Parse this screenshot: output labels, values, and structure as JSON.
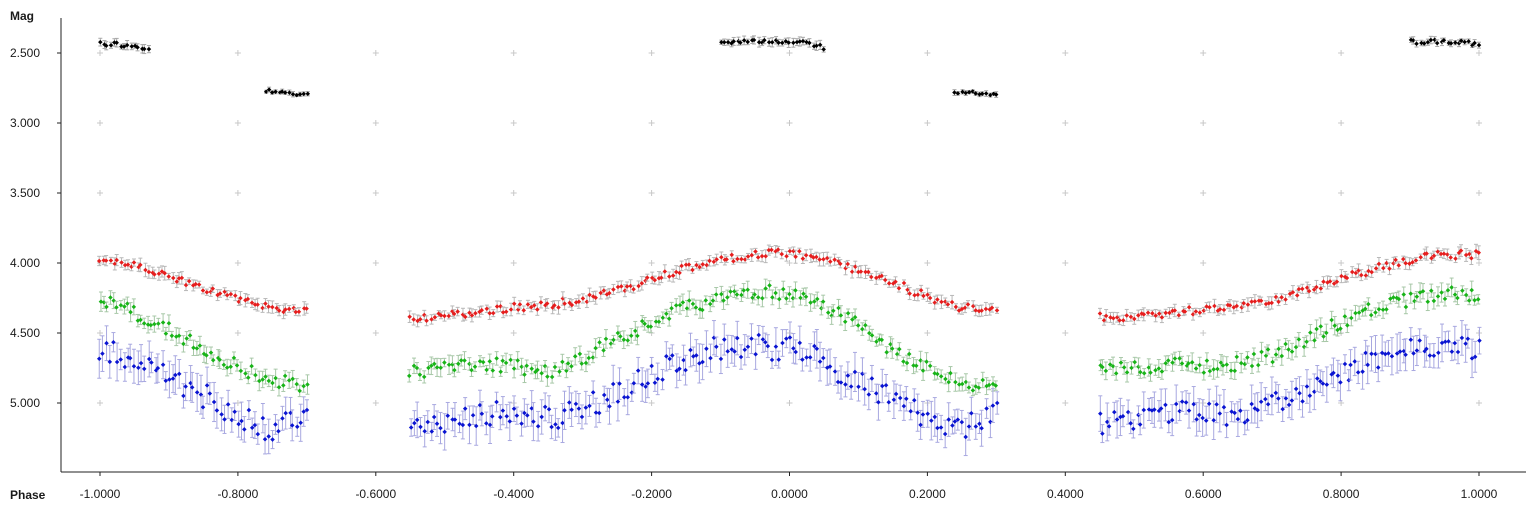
{
  "chart_data": {
    "type": "scatter",
    "title": "",
    "xlabel": "Phase",
    "ylabel": "Mag",
    "y_inverted": true,
    "xlim": [
      -1.1,
      1.1
    ],
    "ylim": [
      2.35,
      5.5
    ],
    "grid": "crosses",
    "x_ticks": [
      -1.0,
      -0.8,
      -0.6,
      -0.4,
      -0.2,
      0.0,
      0.2,
      0.4,
      0.6,
      0.8,
      1.0
    ],
    "x_tick_labels": [
      "-1.0000",
      "-0.8000",
      "-0.6000",
      "-0.4000",
      "-0.2000",
      "0.0000",
      "0.2000",
      "0.4000",
      "0.6000",
      "0.8000",
      "1.0000"
    ],
    "y_ticks": [
      2.5,
      3.0,
      3.5,
      4.0,
      4.5,
      5.0
    ],
    "y_tick_labels": [
      "2.500",
      "3.000",
      "3.500",
      "4.000",
      "4.500",
      "5.000"
    ],
    "series": [
      {
        "color": "#000000",
        "error_color": "#a8a8a8",
        "segments": [
          {
            "x": [
              -1.0,
              -0.97,
              -0.95,
              -0.93
            ],
            "y": [
              2.43,
              2.44,
              2.46,
              2.48
            ],
            "scatter": 0.02,
            "err": 0.025
          },
          {
            "x": [
              -0.76,
              -0.73,
              -0.7
            ],
            "y": [
              2.77,
              2.79,
              2.8
            ],
            "scatter": 0.015,
            "err": 0.015
          },
          {
            "x": [
              -0.1,
              -0.06,
              -0.02,
              0.02,
              0.05
            ],
            "y": [
              2.42,
              2.41,
              2.42,
              2.43,
              2.46
            ],
            "scatter": 0.015,
            "err": 0.025
          },
          {
            "x": [
              0.24,
              0.27,
              0.3
            ],
            "y": [
              2.78,
              2.79,
              2.8
            ],
            "scatter": 0.015,
            "err": 0.015
          },
          {
            "x": [
              0.9,
              0.94,
              0.97,
              1.0
            ],
            "y": [
              2.42,
              2.42,
              2.42,
              2.44
            ],
            "scatter": 0.015,
            "err": 0.02
          }
        ]
      },
      {
        "color": "#e61e1e",
        "error_color": "#b8b8b8",
        "segments": [
          {
            "x": [
              -1.0,
              -0.95,
              -0.9,
              -0.85,
              -0.8,
              -0.75,
              -0.7
            ],
            "y": [
              3.97,
              4.02,
              4.1,
              4.18,
              4.26,
              4.32,
              4.34
            ],
            "scatter": 0.025,
            "err": 0.035
          },
          {
            "x": [
              -0.55,
              -0.5,
              -0.45,
              -0.4,
              -0.35,
              -0.3,
              -0.25,
              -0.2,
              -0.15,
              -0.1,
              -0.05,
              0.0,
              0.05,
              0.1,
              0.15,
              0.2,
              0.25,
              0.3
            ],
            "y": [
              4.39,
              4.38,
              4.35,
              4.32,
              4.3,
              4.26,
              4.2,
              4.12,
              4.04,
              3.98,
              3.94,
              3.93,
              3.97,
              4.05,
              4.14,
              4.24,
              4.32,
              4.34
            ],
            "scatter": 0.03,
            "err": 0.035
          },
          {
            "x": [
              0.45,
              0.5,
              0.55,
              0.6,
              0.65,
              0.7,
              0.75,
              0.8,
              0.85,
              0.9,
              0.95,
              1.0
            ],
            "y": [
              4.39,
              4.38,
              4.36,
              4.33,
              4.3,
              4.26,
              4.2,
              4.12,
              4.04,
              3.98,
              3.94,
              3.94
            ],
            "scatter": 0.03,
            "err": 0.035
          }
        ]
      },
      {
        "color": "#18b418",
        "error_color": "#a8c8a8",
        "segments": [
          {
            "x": [
              -1.0,
              -0.95,
              -0.9,
              -0.85,
              -0.8,
              -0.75,
              -0.7
            ],
            "y": [
              4.25,
              4.35,
              4.48,
              4.62,
              4.74,
              4.84,
              4.88
            ],
            "scatter": 0.05,
            "err": 0.05
          },
          {
            "x": [
              -0.55,
              -0.5,
              -0.45,
              -0.4,
              -0.35,
              -0.3,
              -0.25,
              -0.2,
              -0.15,
              -0.1,
              -0.05,
              0.0,
              0.05,
              0.1,
              0.15,
              0.2,
              0.25,
              0.3
            ],
            "y": [
              4.78,
              4.75,
              4.72,
              4.74,
              4.78,
              4.68,
              4.55,
              4.42,
              4.32,
              4.25,
              4.2,
              4.22,
              4.3,
              4.45,
              4.62,
              4.75,
              4.86,
              4.9
            ],
            "scatter": 0.05,
            "err": 0.05
          },
          {
            "x": [
              0.45,
              0.5,
              0.55,
              0.6,
              0.65,
              0.7,
              0.75,
              0.8,
              0.85,
              0.9,
              0.95,
              1.0
            ],
            "y": [
              4.77,
              4.75,
              4.72,
              4.74,
              4.72,
              4.66,
              4.55,
              4.42,
              4.32,
              4.26,
              4.22,
              4.22
            ],
            "scatter": 0.05,
            "err": 0.05
          }
        ]
      },
      {
        "color": "#0a14d2",
        "error_color": "#a8a8e0",
        "segments": [
          {
            "x": [
              -1.0,
              -0.95,
              -0.9,
              -0.85,
              -0.8,
              -0.75,
              -0.7
            ],
            "y": [
              4.6,
              4.68,
              4.82,
              4.95,
              5.08,
              5.2,
              5.06
            ],
            "scatter": 0.09,
            "err": 0.1
          },
          {
            "x": [
              -0.55,
              -0.5,
              -0.45,
              -0.4,
              -0.35,
              -0.3,
              -0.25,
              -0.2,
              -0.15,
              -0.1,
              -0.05,
              0.0,
              0.05,
              0.1,
              0.15,
              0.2,
              0.25,
              0.3
            ],
            "y": [
              5.15,
              5.12,
              5.08,
              5.06,
              5.12,
              5.05,
              4.92,
              4.78,
              4.68,
              4.6,
              4.6,
              4.62,
              4.7,
              4.85,
              4.98,
              5.1,
              5.18,
              5.05
            ],
            "scatter": 0.09,
            "err": 0.1
          },
          {
            "x": [
              0.45,
              0.5,
              0.55,
              0.6,
              0.65,
              0.7,
              0.75,
              0.8,
              0.85,
              0.9,
              0.95,
              1.0
            ],
            "y": [
              5.15,
              5.12,
              5.06,
              5.05,
              5.1,
              5.02,
              4.9,
              4.78,
              4.68,
              4.62,
              4.6,
              4.62
            ],
            "scatter": 0.08,
            "err": 0.1
          }
        ]
      }
    ]
  }
}
